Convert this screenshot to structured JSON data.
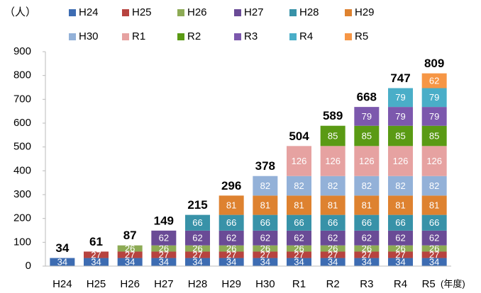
{
  "chart_data": {
    "type": "stacked_bar",
    "y_label": "（人）",
    "x_label": "(年度)",
    "categories": [
      "H24",
      "H25",
      "H26",
      "H27",
      "H28",
      "H29",
      "H30",
      "R1",
      "R2",
      "R3",
      "R4",
      "R5"
    ],
    "series": [
      {
        "name": "H24",
        "color": "#3d6cb2",
        "values": [
          34,
          34,
          34,
          34,
          34,
          34,
          34,
          34,
          34,
          34,
          34,
          34
        ]
      },
      {
        "name": "H25",
        "color": "#b7433f",
        "values": [
          null,
          27,
          27,
          27,
          27,
          27,
          27,
          27,
          27,
          27,
          27,
          27
        ]
      },
      {
        "name": "H26",
        "color": "#8dab55",
        "values": [
          null,
          null,
          26,
          26,
          26,
          26,
          26,
          26,
          26,
          26,
          26,
          26
        ]
      },
      {
        "name": "H27",
        "color": "#6a4b96",
        "values": [
          null,
          null,
          null,
          62,
          62,
          62,
          62,
          62,
          62,
          62,
          62,
          62
        ]
      },
      {
        "name": "H28",
        "color": "#3892a8",
        "values": [
          null,
          null,
          null,
          null,
          66,
          66,
          66,
          66,
          66,
          66,
          66,
          66
        ]
      },
      {
        "name": "H29",
        "color": "#de8230",
        "values": [
          null,
          null,
          null,
          null,
          null,
          81,
          81,
          81,
          81,
          81,
          81,
          81
        ]
      },
      {
        "name": "H30",
        "color": "#93b1d8",
        "values": [
          null,
          null,
          null,
          null,
          null,
          null,
          82,
          82,
          82,
          82,
          82,
          82
        ]
      },
      {
        "name": "R1",
        "color": "#e6a2a1",
        "values": [
          null,
          null,
          null,
          null,
          null,
          null,
          null,
          126,
          126,
          126,
          126,
          126
        ]
      },
      {
        "name": "R2",
        "color": "#5a9a14",
        "values": [
          null,
          null,
          null,
          null,
          null,
          null,
          null,
          null,
          85,
          85,
          85,
          85
        ]
      },
      {
        "name": "R3",
        "color": "#7c58ad",
        "values": [
          null,
          null,
          null,
          null,
          null,
          null,
          null,
          null,
          null,
          79,
          79,
          79
        ]
      },
      {
        "name": "R4",
        "color": "#4aaec8",
        "values": [
          null,
          null,
          null,
          null,
          null,
          null,
          null,
          null,
          null,
          null,
          79,
          79
        ]
      },
      {
        "name": "R5",
        "color": "#f69645",
        "values": [
          null,
          null,
          null,
          null,
          null,
          null,
          null,
          null,
          null,
          null,
          null,
          62
        ]
      }
    ],
    "totals": [
      34,
      61,
      87,
      149,
      215,
      296,
      378,
      504,
      589,
      668,
      747,
      809
    ],
    "ylim": [
      0,
      900
    ],
    "yticks": [
      0,
      100,
      200,
      300,
      400,
      500,
      600,
      700,
      800,
      900
    ]
  }
}
